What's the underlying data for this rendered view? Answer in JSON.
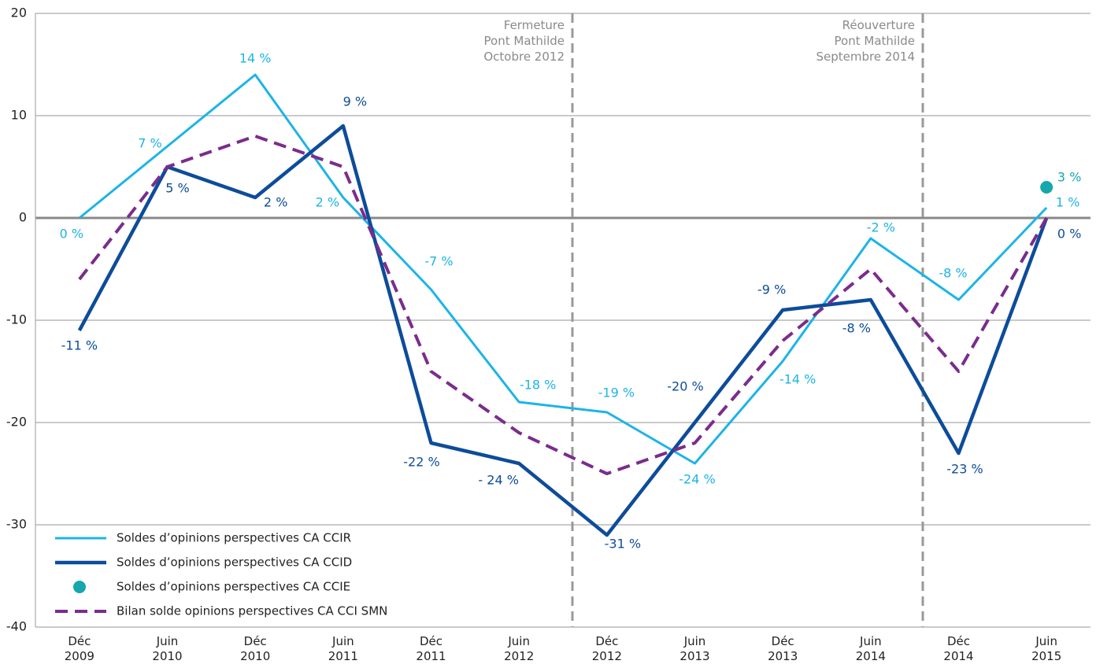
{
  "chart_data": {
    "type": "line",
    "categories": [
      "Déc\n2009",
      "Juin\n2010",
      "Déc\n2010",
      "Juin\n2011",
      "Déc\n2011",
      "Juin\n2012",
      "Déc\n2012",
      "Juin\n2013",
      "Déc\n2013",
      "Juin\n2014",
      "Déc\n2014",
      "Juin\n2015"
    ],
    "series": [
      {
        "name": "Soldes d’opinions perspectives CA CCIR",
        "color": "#1db4e6",
        "values": [
          0,
          7,
          14,
          2,
          -7,
          -18,
          -19,
          -24,
          -14,
          -2,
          -8,
          1
        ],
        "value_labels": [
          "0 %",
          "7 %",
          "14 %",
          "2 %",
          "-7 %",
          "-18 %",
          "-19 %",
          "-24 %",
          "-14 %",
          "-2 %",
          "-8 %",
          "1 %"
        ]
      },
      {
        "name": "Soldes d’opinions perspectives CA CCID",
        "color": "#0d4c9a",
        "values": [
          -11,
          5,
          2,
          9,
          -22,
          -24,
          -31,
          -20,
          -9,
          -8,
          -23,
          0
        ],
        "value_labels": [
          "-11 %",
          "5 %",
          "2 %",
          "9 %",
          "-22 %",
          "- 24 %",
          "-31 %",
          "-20 %",
          "-9 %",
          "-8 %",
          "-23 %",
          "0 %"
        ]
      },
      {
        "name": "Soldes d’opinions perspectives CA CCIE",
        "color": "#16a7ad",
        "values": [
          null,
          null,
          null,
          null,
          null,
          null,
          null,
          null,
          null,
          null,
          null,
          3
        ],
        "value_labels": [
          null,
          null,
          null,
          null,
          null,
          null,
          null,
          null,
          null,
          null,
          null,
          "3 %"
        ]
      },
      {
        "name": "Bilan solde opinions perspectives CA CCI SMN",
        "color": "#7b2c8c",
        "values": [
          -6,
          5,
          8,
          5,
          -15,
          -21,
          -25,
          -22,
          -12,
          -5,
          -15,
          0
        ]
      }
    ],
    "annotations": [
      "Fermeture\nPont Mathilde\nOctobre 2012",
      "Réouverture\nPont Mathilde\nSeptembre 2014"
    ],
    "ylim": [
      -40,
      20
    ],
    "yticks": [
      -40,
      -30,
      -20,
      -10,
      0,
      10,
      20
    ],
    "grid": true
  }
}
